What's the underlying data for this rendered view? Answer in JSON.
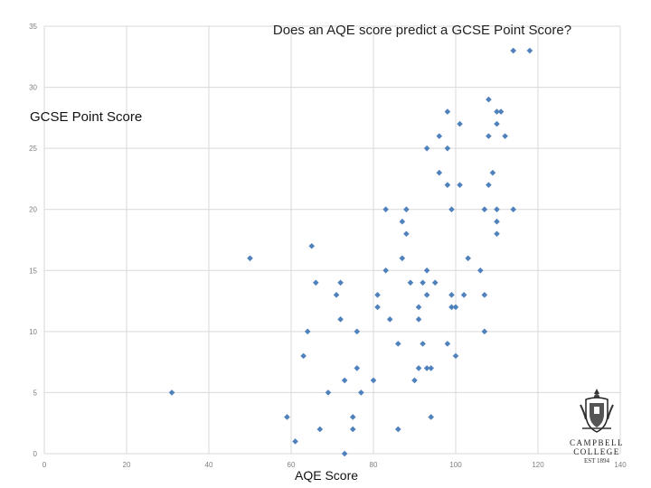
{
  "chart_data": {
    "type": "scatter",
    "title": "Does an AQE score predict a GCSE Point Score?",
    "xlabel": "AQE Score",
    "ylabel": "GCSE Point Score",
    "xlim": [
      0,
      140
    ],
    "ylim": [
      0,
      35
    ],
    "x_ticks": [
      0,
      20,
      40,
      60,
      80,
      100,
      120,
      140
    ],
    "y_ticks": [
      0,
      5,
      10,
      15,
      20,
      25,
      30,
      35
    ],
    "grid": true,
    "marker_color": "#4f81bd",
    "points": [
      [
        31,
        5
      ],
      [
        50,
        16
      ],
      [
        59,
        3
      ],
      [
        61,
        1
      ],
      [
        63,
        8
      ],
      [
        64,
        10
      ],
      [
        65,
        17
      ],
      [
        66,
        14
      ],
      [
        67,
        2
      ],
      [
        69,
        5
      ],
      [
        71,
        13
      ],
      [
        72,
        14
      ],
      [
        72,
        11
      ],
      [
        73,
        6
      ],
      [
        73,
        0
      ],
      [
        75,
        3
      ],
      [
        75,
        2
      ],
      [
        76,
        10
      ],
      [
        76,
        7
      ],
      [
        77,
        5
      ],
      [
        80,
        6
      ],
      [
        81,
        13
      ],
      [
        81,
        12
      ],
      [
        83,
        20
      ],
      [
        83,
        15
      ],
      [
        84,
        11
      ],
      [
        86,
        9
      ],
      [
        86,
        2
      ],
      [
        87,
        19
      ],
      [
        87,
        16
      ],
      [
        88,
        20
      ],
      [
        88,
        18
      ],
      [
        89,
        14
      ],
      [
        90,
        6
      ],
      [
        91,
        12
      ],
      [
        91,
        11
      ],
      [
        91,
        7
      ],
      [
        92,
        14
      ],
      [
        92,
        9
      ],
      [
        93,
        25
      ],
      [
        93,
        15
      ],
      [
        93,
        13
      ],
      [
        93,
        7
      ],
      [
        94,
        7
      ],
      [
        94,
        3
      ],
      [
        95,
        14
      ],
      [
        96,
        26
      ],
      [
        96,
        23
      ],
      [
        98,
        28
      ],
      [
        98,
        25
      ],
      [
        98,
        22
      ],
      [
        98,
        9
      ],
      [
        99,
        20
      ],
      [
        99,
        13
      ],
      [
        99,
        12
      ],
      [
        100,
        12
      ],
      [
        100,
        8
      ],
      [
        101,
        27
      ],
      [
        101,
        22
      ],
      [
        102,
        13
      ],
      [
        103,
        16
      ],
      [
        106,
        15
      ],
      [
        107,
        20
      ],
      [
        107,
        13
      ],
      [
        107,
        10
      ],
      [
        108,
        29
      ],
      [
        108,
        26
      ],
      [
        108,
        22
      ],
      [
        109,
        23
      ],
      [
        110,
        28
      ],
      [
        110,
        27
      ],
      [
        110,
        20
      ],
      [
        110,
        19
      ],
      [
        110,
        18
      ],
      [
        111,
        28
      ],
      [
        112,
        26
      ],
      [
        114,
        33
      ],
      [
        114,
        20
      ],
      [
        118,
        33
      ]
    ]
  },
  "logo": {
    "icon": "crest-icon",
    "name_line1": "CAMPBELL",
    "name_line2": "COLLEGE",
    "est": "EST 1894"
  }
}
